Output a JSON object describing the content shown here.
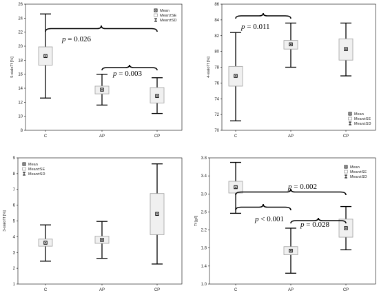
{
  "figure": {
    "background": "#ffffff",
    "box_fill": "#f0f0f0",
    "box_stroke": "#a0a0a0",
    "line_color": "#000000"
  },
  "legend": {
    "mean": "Mean",
    "se": "Mean±SE",
    "sd": "Mean±SD"
  },
  "chart_data": [
    {
      "type": "boxplot",
      "panel": "top-left",
      "title": "",
      "xlabel": "",
      "ylabel": "5-sialoTf [%]",
      "categories": [
        "C",
        "AP",
        "CP"
      ],
      "ylim": [
        8,
        26
      ],
      "yticks": [
        8,
        10,
        12,
        14,
        16,
        18,
        20,
        22,
        24,
        26
      ],
      "series": [
        {
          "category": "C",
          "mean": 18.6,
          "se": [
            17.3,
            19.9
          ],
          "sd": [
            12.6,
            24.6
          ]
        },
        {
          "category": "AP",
          "mean": 13.8,
          "se": [
            13.2,
            14.3
          ],
          "sd": [
            11.6,
            16.0
          ]
        },
        {
          "category": "CP",
          "mean": 12.9,
          "se": [
            11.9,
            14.1
          ],
          "sd": [
            10.4,
            15.5
          ]
        }
      ],
      "annotations": [
        {
          "from": "C",
          "to": "CP",
          "p_label": "p",
          "value_label": " = 0.026"
        },
        {
          "from": "AP",
          "to": "CP",
          "p_label": "p",
          "value_label": " = 0.003"
        }
      ],
      "legend_position": "top-right",
      "grid": false
    },
    {
      "type": "boxplot",
      "panel": "top-right",
      "title": "",
      "xlabel": "",
      "ylabel": "4-sialoTf [%]",
      "categories": [
        "C",
        "AP",
        "CP"
      ],
      "ylim": [
        70,
        86
      ],
      "yticks": [
        70,
        72,
        74,
        76,
        78,
        80,
        82,
        84,
        86
      ],
      "series": [
        {
          "category": "C",
          "mean": 76.9,
          "se": [
            75.6,
            78.1
          ],
          "sd": [
            71.2,
            82.4
          ]
        },
        {
          "category": "AP",
          "mean": 80.9,
          "se": [
            80.3,
            81.4
          ],
          "sd": [
            78.0,
            83.6
          ]
        },
        {
          "category": "CP",
          "mean": 80.3,
          "se": [
            78.9,
            81.6
          ],
          "sd": [
            76.9,
            83.6
          ]
        }
      ],
      "annotations": [
        {
          "from": "C",
          "to": "AP",
          "p_label": "p",
          "value_label": " = 0.011"
        }
      ],
      "legend_position": "bottom-right",
      "grid": false
    },
    {
      "type": "boxplot",
      "panel": "bottom-left",
      "title": "",
      "xlabel": "",
      "ylabel": "3-sialoTf [%]",
      "categories": [
        "C",
        "AP",
        "CP"
      ],
      "ylim": [
        1,
        9
      ],
      "yticks": [
        1,
        2,
        3,
        4,
        5,
        6,
        7,
        8,
        9
      ],
      "series": [
        {
          "category": "C",
          "mean": 3.62,
          "se": [
            3.4,
            3.85
          ],
          "sd": [
            2.45,
            4.75
          ]
        },
        {
          "category": "AP",
          "mean": 3.8,
          "se": [
            3.58,
            4.03
          ],
          "sd": [
            2.63,
            4.97
          ]
        },
        {
          "category": "CP",
          "mean": 5.45,
          "se": [
            4.13,
            6.74
          ],
          "sd": [
            2.27,
            8.62
          ]
        }
      ],
      "annotations": [],
      "legend_position": "top-left",
      "grid": false
    },
    {
      "type": "boxplot",
      "panel": "bottom-right",
      "title": "",
      "xlabel": "",
      "ylabel": "Tf [g/l]",
      "categories": [
        "C",
        "AP",
        "CP"
      ],
      "ylim": [
        1.0,
        3.8
      ],
      "yticks": [
        "1.0",
        "1.4",
        "1.8",
        "2.2",
        "2.6",
        "3.0",
        "3.4",
        "3.8"
      ],
      "series": [
        {
          "category": "C",
          "mean": 3.15,
          "se": [
            3.02,
            3.28
          ],
          "sd": [
            2.57,
            3.7
          ]
        },
        {
          "category": "AP",
          "mean": 1.74,
          "se": [
            1.65,
            1.83
          ],
          "sd": [
            1.24,
            2.24
          ]
        },
        {
          "category": "CP",
          "mean": 2.24,
          "se": [
            2.04,
            2.44
          ],
          "sd": [
            1.76,
            2.72
          ]
        }
      ],
      "annotations": [
        {
          "from": "C",
          "to": "CP",
          "p_label": "p",
          "value_label": " = 0.002"
        },
        {
          "from": "C",
          "to": "AP",
          "p_label": "p",
          "value_label": " < 0.001"
        },
        {
          "from": "AP",
          "to": "CP",
          "p_label": "p",
          "value_label": " = 0.028"
        }
      ],
      "legend_position": "top-right",
      "grid": false
    }
  ]
}
